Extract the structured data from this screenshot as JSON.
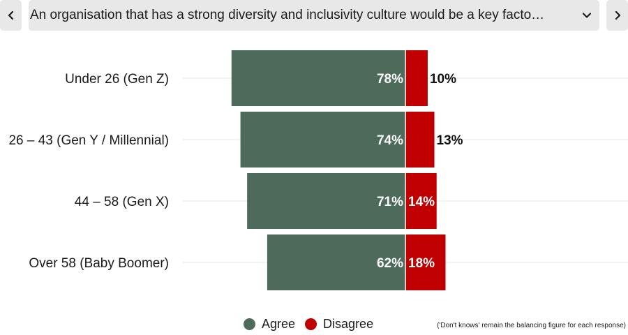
{
  "nav": {
    "prev_icon": "chevron-left-icon",
    "next_icon": "chevron-right-icon",
    "question": "An organisation that has a strong diversity and inclusivity culture would be a key facto…",
    "dropdown_icon": "chevron-down-icon"
  },
  "colors": {
    "agree": "#4d6a5b",
    "disagree": "#c00000",
    "grid": "#e6e6e6",
    "background": "#ffffff"
  },
  "chart_data": {
    "type": "bar",
    "orientation": "horizontal-diverging",
    "categories": [
      "Under 26 (Gen Z)",
      "26 – 43 (Gen Y / Millennial)",
      "44 – 58 (Gen X)",
      "Over 58 (Baby Boomer)"
    ],
    "series": [
      {
        "name": "Agree",
        "values": [
          78,
          74,
          71,
          62
        ],
        "labels": [
          "78%",
          "74%",
          "71%",
          "62%"
        ]
      },
      {
        "name": "Disagree",
        "values": [
          10,
          13,
          14,
          18
        ],
        "labels": [
          "10%",
          "13%",
          "14%",
          "18%"
        ]
      }
    ],
    "unit": "%",
    "legend_position": "bottom-center",
    "grid": true
  },
  "legend": {
    "agree_label": "Agree",
    "disagree_label": "Disagree"
  },
  "footnote": "('Don't knows' remain the balancing figure for each response)"
}
